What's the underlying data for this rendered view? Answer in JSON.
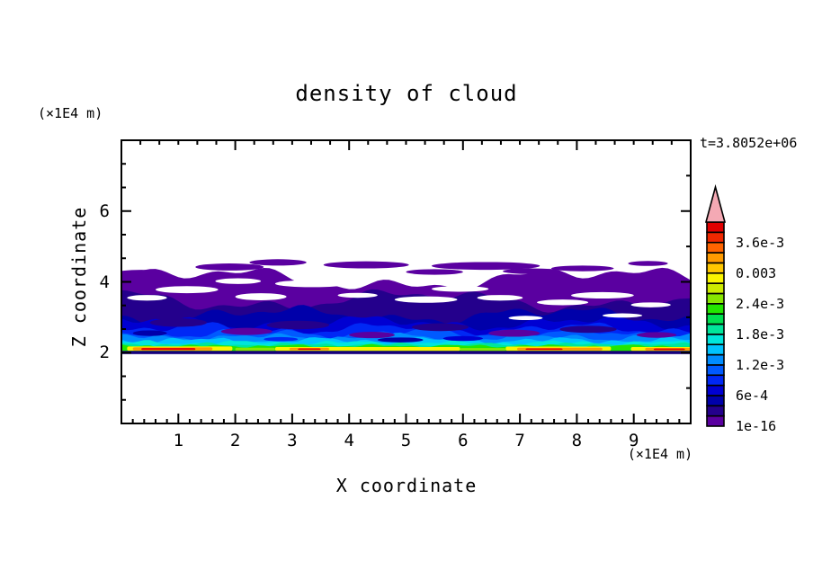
{
  "title": "density of cloud",
  "time_label": "t=3.8052e+06",
  "background": "#ffffff",
  "axes": {
    "x": {
      "label": "X coordinate",
      "units": "(×1E4 m)",
      "min": 0,
      "max": 10,
      "major_ticks": [
        1,
        2,
        3,
        4,
        5,
        6,
        7,
        8,
        9
      ],
      "minor_step": 0.2,
      "top_major_ticks": [
        2,
        4,
        6,
        8
      ],
      "top_minor_step": 0.3333
    },
    "z": {
      "label": "Z coordinate",
      "units": "(×1E4 m)",
      "min": 0,
      "max": 8,
      "major_ticks": [
        2,
        4,
        6
      ],
      "minor_step": 0.6667,
      "right_minor_ticks": [
        1,
        3,
        5,
        7
      ]
    }
  },
  "colorbar": {
    "cell_colors_bottom_to_top": [
      "#5a00a0",
      "#24008c",
      "#0000aa",
      "#0000d2",
      "#0028f5",
      "#005aff",
      "#008cff",
      "#00c3ff",
      "#00e6dc",
      "#00e69b",
      "#00e150",
      "#23e600",
      "#87e600",
      "#cdeb00",
      "#faf500",
      "#ffc800",
      "#ff9b00",
      "#ff6400",
      "#f02800",
      "#e10000"
    ],
    "overflow_arrow_color": "#f4a9b4",
    "labels": [
      {
        "text": "3.6e-3",
        "cell_boundary": 18
      },
      {
        "text": "0.003",
        "cell_boundary": 15
      },
      {
        "text": "2.4e-3",
        "cell_boundary": 12
      },
      {
        "text": "1.8e-3",
        "cell_boundary": 9
      },
      {
        "text": "1.2e-3",
        "cell_boundary": 6
      },
      {
        "text": "6e-4",
        "cell_boundary": 3
      },
      {
        "text": "1e-16",
        "cell_boundary": 0
      }
    ]
  },
  "chart_data": {
    "type": "filled_contour",
    "title": "density of cloud",
    "xlabel": "X coordinate",
    "ylabel": "Z coordinate",
    "x_units": "(×1E4 m)",
    "z_units": "(×1E4 m)",
    "xlim": [
      0,
      10
    ],
    "zlim": [
      0,
      8
    ],
    "time": "t=3.8052e+06",
    "levels": [
      "1e-16",
      "2e-4",
      "4e-4",
      "6e-4",
      "8e-4",
      "1e-3",
      "1.2e-3",
      "1.4e-3",
      "1.6e-3",
      "1.8e-3",
      "2e-3",
      "2.2e-3",
      "2.4e-3",
      "2.6e-3",
      "2.8e-3",
      "3e-3",
      "3.2e-3",
      "3.4e-3",
      "3.6e-3",
      "3.8e-3",
      "4e-3"
    ],
    "description": "Stratiform cloud deck spanning the full x range between z≈2.0 and z≈4.3 (×1E4 m). Density is near-zero (purple, 1e-16) at the ragged cloud top with detached fragments near z≈4.5, increases downward through dark navy and blues, and peaks (yellow/orange/red streaks, 2e-3 to 4e-3) in a thin layer just above the cloud base; a dark solid line marks the base at z=2; clear white air above and below.",
    "cloud_layers": [
      {
        "color": 0,
        "z_bottom": 2.0,
        "z_top_base": 4.08,
        "waves": [
          [
            0.22,
            0.9,
            0.3
          ],
          [
            0.13,
            2.7,
            1.2
          ],
          [
            0.08,
            6.3,
            4.0
          ]
        ]
      },
      {
        "color": 1,
        "z_bottom": 2.0,
        "z_top_base": 3.48,
        "waves": [
          [
            0.2,
            1.1,
            2.1
          ],
          [
            0.12,
            3.1,
            0.4
          ],
          [
            0.07,
            7.1,
            1.9
          ]
        ]
      },
      {
        "color": 2,
        "z_bottom": 2.0,
        "z_top_base": 3.06,
        "waves": [
          [
            0.15,
            1.3,
            4.2
          ],
          [
            0.1,
            3.7,
            2.2
          ],
          [
            0.06,
            8.2,
            0.7
          ]
        ]
      },
      {
        "color": 3,
        "z_bottom": 2.0,
        "z_top_base": 2.84,
        "waves": [
          [
            0.12,
            1.6,
            0.9
          ],
          [
            0.08,
            4.1,
            3.1
          ],
          [
            0.05,
            9.4,
            2.5
          ]
        ]
      },
      {
        "color": 4,
        "z_bottom": 2.0,
        "z_top_base": 2.68,
        "waves": [
          [
            0.1,
            1.9,
            5.2
          ],
          [
            0.07,
            4.6,
            1.0
          ],
          [
            0.04,
            10.2,
            3.3
          ]
        ]
      },
      {
        "color": 5,
        "z_bottom": 2.0,
        "z_top_base": 2.55,
        "waves": [
          [
            0.08,
            2.2,
            2.7
          ],
          [
            0.06,
            5.2,
            4.4
          ],
          [
            0.035,
            11,
            1.1
          ]
        ]
      },
      {
        "color": 6,
        "z_bottom": 2.0,
        "z_top_base": 2.44,
        "waves": [
          [
            0.06,
            2.6,
            1.4
          ],
          [
            0.05,
            6.1,
            2.9
          ],
          [
            0.03,
            12,
            0.2
          ]
        ]
      },
      {
        "color": 7,
        "z_bottom": 2.0,
        "z_top_base": 2.35,
        "waves": [
          [
            0.05,
            3.0,
            3.8
          ],
          [
            0.04,
            7.2,
            1.6
          ],
          [
            0.025,
            13,
            2.8
          ]
        ]
      },
      {
        "color": 8,
        "z_bottom": 2.02,
        "z_top_base": 2.28,
        "waves": [
          [
            0.04,
            3.4,
            0.6
          ],
          [
            0.03,
            8.1,
            4.2
          ],
          [
            0.02,
            14,
            1.3
          ]
        ]
      },
      {
        "color": 9,
        "z_bottom": 2.03,
        "z_top_base": 2.23,
        "waves": [
          [
            0.03,
            3.8,
            2.4
          ],
          [
            0.025,
            9,
            0.8
          ],
          [
            0.015,
            15,
            3.6
          ]
        ]
      },
      {
        "color": 11,
        "z_bottom": 2.04,
        "z_top_base": 2.19,
        "waves": [
          [
            0.025,
            4.2,
            1.7
          ],
          [
            0.02,
            9.7,
            3.0
          ],
          [
            0.012,
            16,
            0.9
          ]
        ]
      }
    ],
    "texture_patches": [
      [
        1.0,
        2.85,
        0.5,
        0.12,
        1
      ],
      [
        2.2,
        2.6,
        0.45,
        0.1,
        0
      ],
      [
        3.1,
        2.78,
        0.55,
        0.12,
        1
      ],
      [
        4.4,
        2.5,
        0.4,
        0.09,
        0
      ],
      [
        5.6,
        2.72,
        0.5,
        0.11,
        1
      ],
      [
        6.9,
        2.55,
        0.45,
        0.1,
        0
      ],
      [
        8.2,
        2.66,
        0.5,
        0.1,
        1
      ],
      [
        9.4,
        2.5,
        0.35,
        0.08,
        0
      ],
      [
        4.9,
        2.36,
        0.4,
        0.07,
        2
      ],
      [
        0.5,
        2.55,
        0.3,
        0.08,
        2
      ],
      [
        6.0,
        2.4,
        0.35,
        0.07,
        3
      ],
      [
        2.8,
        2.38,
        0.3,
        0.06,
        4
      ]
    ],
    "white_holes": [
      [
        1.15,
        3.78,
        0.55,
        0.1
      ],
      [
        2.05,
        4.02,
        0.4,
        0.08
      ],
      [
        2.45,
        3.58,
        0.45,
        0.1
      ],
      [
        3.35,
        3.95,
        0.65,
        0.1
      ],
      [
        4.15,
        3.62,
        0.35,
        0.07
      ],
      [
        5.35,
        3.5,
        0.55,
        0.09
      ],
      [
        5.95,
        3.8,
        0.5,
        0.08
      ],
      [
        6.65,
        3.55,
        0.4,
        0.08
      ],
      [
        7.75,
        3.42,
        0.45,
        0.08
      ],
      [
        8.45,
        3.62,
        0.55,
        0.09
      ],
      [
        9.3,
        3.35,
        0.35,
        0.07
      ],
      [
        7.1,
        2.98,
        0.3,
        0.06
      ],
      [
        8.8,
        3.05,
        0.35,
        0.06
      ],
      [
        0.45,
        3.55,
        0.35,
        0.08
      ]
    ],
    "detached_blobs": [
      [
        0.35,
        4.25,
        0.45,
        0.09
      ],
      [
        1.9,
        4.42,
        0.6,
        0.1
      ],
      [
        2.75,
        4.55,
        0.5,
        0.09
      ],
      [
        4.3,
        4.48,
        0.75,
        0.1
      ],
      [
        5.5,
        4.28,
        0.5,
        0.08
      ],
      [
        6.4,
        4.45,
        0.95,
        0.11
      ],
      [
        7.2,
        4.3,
        0.5,
        0.08
      ],
      [
        8.1,
        4.38,
        0.55,
        0.08
      ],
      [
        9.25,
        4.52,
        0.35,
        0.07
      ]
    ],
    "streaks": [
      {
        "color": 14,
        "segments": [
          [
            0.1,
            1.95,
            2.055,
            2.175
          ],
          [
            2.7,
            5.95,
            2.05,
            2.16
          ],
          [
            6.75,
            8.6,
            2.055,
            2.17
          ],
          [
            8.95,
            10,
            2.05,
            2.16
          ]
        ]
      },
      {
        "color": 12,
        "segments": [
          [
            2.0,
            2.7,
            2.05,
            2.14
          ],
          [
            5.95,
            6.75,
            2.05,
            2.13
          ]
        ]
      },
      {
        "color": 16,
        "segments": [
          [
            0.2,
            1.6,
            2.065,
            2.15
          ],
          [
            2.95,
            3.65,
            2.07,
            2.135
          ],
          [
            6.95,
            8.45,
            2.065,
            2.14
          ],
          [
            9.2,
            10,
            2.06,
            2.135
          ]
        ]
      },
      {
        "color": 19,
        "segments": [
          [
            0.35,
            1.3,
            2.075,
            2.13
          ],
          [
            3.1,
            3.5,
            2.08,
            2.12
          ],
          [
            7.1,
            7.75,
            2.078,
            2.122
          ],
          [
            9.35,
            9.9,
            2.073,
            2.118
          ]
        ]
      }
    ],
    "base_line": {
      "z0": 1.96,
      "z1": 2.05,
      "color": "#16007a"
    }
  }
}
